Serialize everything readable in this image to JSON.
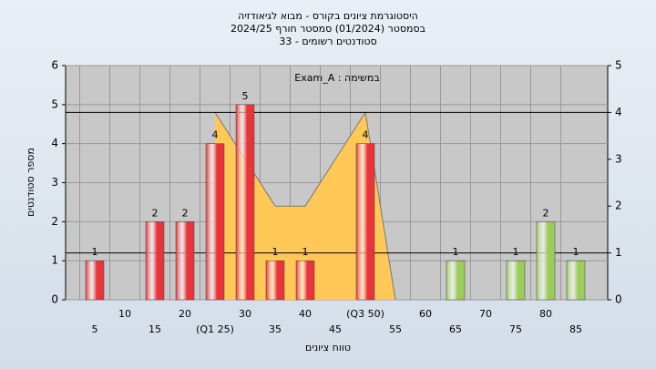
{
  "chart_data": {
    "type": "bar",
    "title_lines": [
      "היסטוגרמת ציונים בקורס - מבוא לגיאודזיה",
      "בסמסטר (01/2024)  סמסטר חורף 2024/25",
      "סטודנטים רשומים - 33"
    ],
    "annotation": "Exam_A : במשימה",
    "ylabel": "מספר סטודנטים",
    "xlabel": "טווח ציונים",
    "categories": [
      "5",
      "10",
      "15",
      "20",
      "(Q1 25)",
      "30",
      "35",
      "40",
      "45",
      "(Q3 50)",
      "55",
      "60",
      "65",
      "70",
      "75",
      "80",
      "85"
    ],
    "values": [
      1,
      0,
      2,
      2,
      4,
      5,
      1,
      1,
      0,
      4,
      0,
      0,
      1,
      0,
      1,
      2,
      1
    ],
    "colors": [
      "#e8353a",
      "#e8353a",
      "#e8353a",
      "#e8353a",
      "#e8353a",
      "#e8353a",
      "#e8353a",
      "#e8353a",
      "#e8353a",
      "#e8353a",
      "#e8353a",
      "#9ccc5a",
      "#9ccc5a",
      "#9ccc5a",
      "#9ccc5a",
      "#9ccc5a",
      "#9ccc5a"
    ],
    "ylim": [
      0,
      6
    ],
    "yticks": [
      0,
      1,
      2,
      3,
      4,
      5,
      6
    ],
    "y2lim": [
      0,
      5
    ],
    "y2ticks": [
      0,
      1,
      2,
      3,
      4,
      5
    ],
    "grid": true,
    "box_area": {
      "axis": "y2",
      "color": "#ffc857",
      "x": [
        25,
        35,
        40,
        50,
        55
      ],
      "values": [
        4,
        2,
        2,
        4,
        0
      ]
    },
    "y2_lines": [
      1,
      4
    ]
  }
}
